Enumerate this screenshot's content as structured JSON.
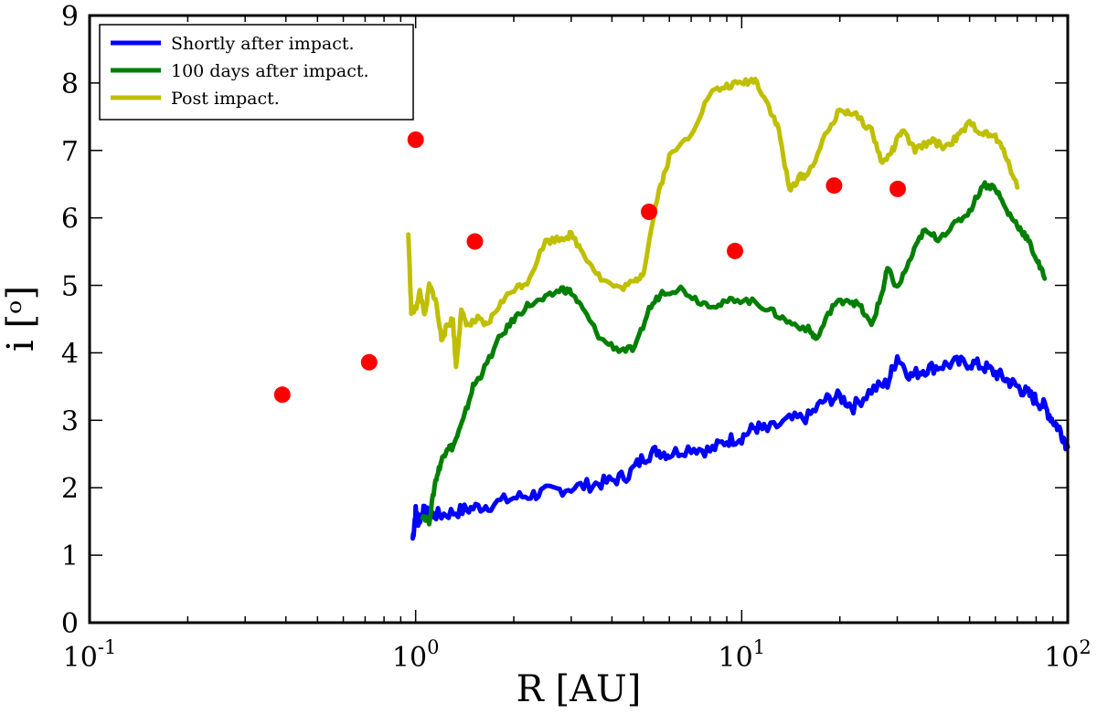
{
  "chart_data": {
    "type": "line",
    "xlabel": "R [AU]",
    "ylabel": "i [ᵒ]",
    "xscale": "log",
    "xlim": [
      0.1,
      100
    ],
    "ylim": [
      0,
      9
    ],
    "grid": false,
    "legend_position": "top-left",
    "x_ticks": [
      {
        "value": 0.1,
        "base": "10",
        "exp": "-1"
      },
      {
        "value": 1,
        "base": "10",
        "exp": "0"
      },
      {
        "value": 10,
        "base": "10",
        "exp": "1"
      },
      {
        "value": 100,
        "base": "10",
        "exp": "2"
      }
    ],
    "y_ticks": [
      "0",
      "1",
      "2",
      "3",
      "4",
      "5",
      "6",
      "7",
      "8",
      "9"
    ],
    "series": [
      {
        "name": "Shortly after impact.",
        "color": "#0000ff",
        "x": [
          0.98,
          1.0,
          1.02,
          1.05,
          1.1,
          1.2,
          1.35,
          1.5,
          1.7,
          2.0,
          2.3,
          2.6,
          3.0,
          3.5,
          4.0,
          4.5,
          5.0,
          5.5,
          6.0,
          7.0,
          8.0,
          9.0,
          10.0,
          11.0,
          12.0,
          14.0,
          16.0,
          18.0,
          20.0,
          22.0,
          25.0,
          28.0,
          30.0,
          33.0,
          36.0,
          40.0,
          45.0,
          50.0,
          55.0,
          60.0,
          65.0,
          70.0,
          75.0,
          80.0,
          85.0,
          90.0,
          95.0,
          100.0
        ],
        "y": [
          1.25,
          1.65,
          1.5,
          1.65,
          1.6,
          1.6,
          1.65,
          1.7,
          1.75,
          1.85,
          1.9,
          1.95,
          2.0,
          2.05,
          2.1,
          2.2,
          2.45,
          2.55,
          2.5,
          2.6,
          2.55,
          2.7,
          2.75,
          2.9,
          2.85,
          3.0,
          3.05,
          3.3,
          3.35,
          3.2,
          3.45,
          3.55,
          3.95,
          3.65,
          3.75,
          3.8,
          3.85,
          3.85,
          3.8,
          3.7,
          3.6,
          3.5,
          3.4,
          3.3,
          3.2,
          3.0,
          2.85,
          2.6
        ]
      },
      {
        "name": "100 days after impact.",
        "color": "#007f00",
        "x": [
          1.05,
          1.1,
          1.15,
          1.2,
          1.25,
          1.3,
          1.4,
          1.5,
          1.6,
          1.8,
          2.0,
          2.2,
          2.5,
          2.8,
          3.0,
          3.3,
          3.7,
          4.2,
          4.7,
          5.2,
          5.7,
          6.5,
          7.5,
          8.5,
          9.5,
          11.0,
          12.5,
          14.0,
          16.0,
          17.0,
          19.0,
          21.0,
          23.0,
          25.0,
          27.0,
          28.0,
          30.0,
          33.0,
          36.0,
          40.0,
          45.0,
          50.0,
          55.0,
          60.0,
          65.0,
          70.0,
          75.0,
          80.0,
          85.0
        ],
        "y": [
          1.6,
          1.5,
          2.1,
          2.4,
          2.6,
          2.6,
          3.0,
          3.5,
          3.7,
          4.2,
          4.5,
          4.7,
          4.8,
          4.95,
          4.9,
          4.6,
          4.2,
          4.05,
          4.05,
          4.65,
          4.9,
          4.95,
          4.75,
          4.7,
          4.8,
          4.75,
          4.6,
          4.45,
          4.35,
          4.2,
          4.7,
          4.8,
          4.7,
          4.4,
          4.9,
          5.25,
          4.95,
          5.4,
          5.8,
          5.7,
          5.9,
          6.1,
          6.5,
          6.45,
          6.1,
          5.9,
          5.7,
          5.4,
          5.1
        ]
      },
      {
        "name": "Post impact.",
        "color": "#bfbf00",
        "x": [
          0.95,
          0.97,
          1.0,
          1.03,
          1.07,
          1.1,
          1.15,
          1.2,
          1.25,
          1.3,
          1.33,
          1.38,
          1.45,
          1.55,
          1.65,
          1.8,
          2.0,
          2.2,
          2.5,
          2.8,
          3.0,
          3.3,
          3.7,
          4.2,
          4.7,
          5.0,
          5.5,
          6.0,
          7.0,
          8.0,
          9.0,
          10.0,
          11.0,
          12.0,
          13.0,
          14.0,
          15.0,
          16.0,
          18.0,
          20.0,
          22.0,
          25.0,
          27.0,
          29.0,
          31.0,
          34.0,
          38.0,
          42.0,
          46.0,
          50.0,
          55.0,
          60.0,
          65.0,
          70.0
        ],
        "y": [
          5.75,
          4.6,
          4.65,
          4.9,
          4.55,
          5.0,
          4.8,
          4.2,
          4.4,
          4.5,
          3.8,
          4.6,
          4.4,
          4.5,
          4.4,
          4.7,
          4.95,
          5.05,
          5.65,
          5.7,
          5.75,
          5.45,
          5.1,
          4.95,
          5.05,
          5.2,
          6.3,
          6.9,
          7.25,
          7.85,
          7.95,
          8.0,
          8.05,
          7.7,
          7.3,
          6.4,
          6.6,
          6.65,
          7.2,
          7.6,
          7.55,
          7.3,
          6.8,
          7.0,
          7.3,
          7.0,
          7.15,
          7.05,
          7.2,
          7.4,
          7.25,
          7.2,
          6.9,
          6.45
        ]
      }
    ],
    "scatter": {
      "color": "#ff0000",
      "x": [
        0.39,
        0.72,
        1.0,
        1.52,
        5.2,
        9.54,
        19.2,
        30.1
      ],
      "y": [
        3.38,
        3.86,
        7.16,
        5.65,
        6.09,
        5.51,
        6.48,
        6.43
      ]
    }
  }
}
